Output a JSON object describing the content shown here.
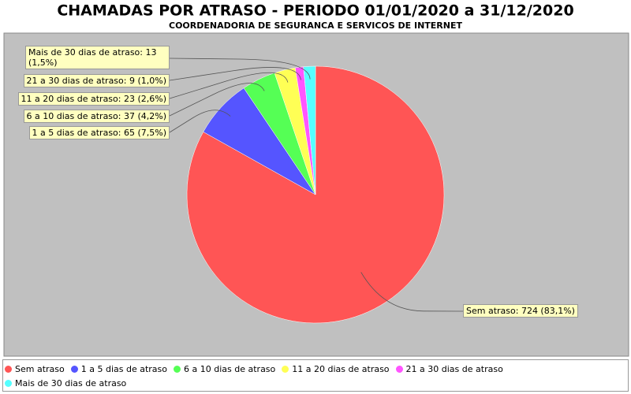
{
  "chart_data": {
    "type": "pie",
    "title": "CHAMADAS POR ATRASO - PERIODO 01/01/2020 a 31/12/2020",
    "subtitle": "COORDENADORIA DE SEGURANCA E SERVICOS DE INTERNET",
    "categories": [
      "Sem atraso",
      "1 a 5 dias de atraso",
      "6 a 10 dias de atraso",
      "11 a 20 dias de atraso",
      "21 a 30 dias de atraso",
      "Mais de 30 dias de atraso"
    ],
    "values": [
      724,
      65,
      37,
      23,
      9,
      13
    ],
    "value_labels": [
      "Sem atraso: 724 (83,1%)",
      "1 a 5 dias de atraso: 65 (7,5%)",
      "6 a 10 dias de atraso: 37 (4,2%)",
      "11 a 20 dias de atraso: 23 (2,6%)",
      "21 a 30 dias de atraso: 9 (1,0%)",
      "Mais de 30 dias de atraso: 13 (1,5%)"
    ],
    "colors": [
      "#ff5555",
      "#5555ff",
      "#55ff55",
      "#ffff55",
      "#ff55ff",
      "#55ffff"
    ],
    "legend": "bottom"
  }
}
